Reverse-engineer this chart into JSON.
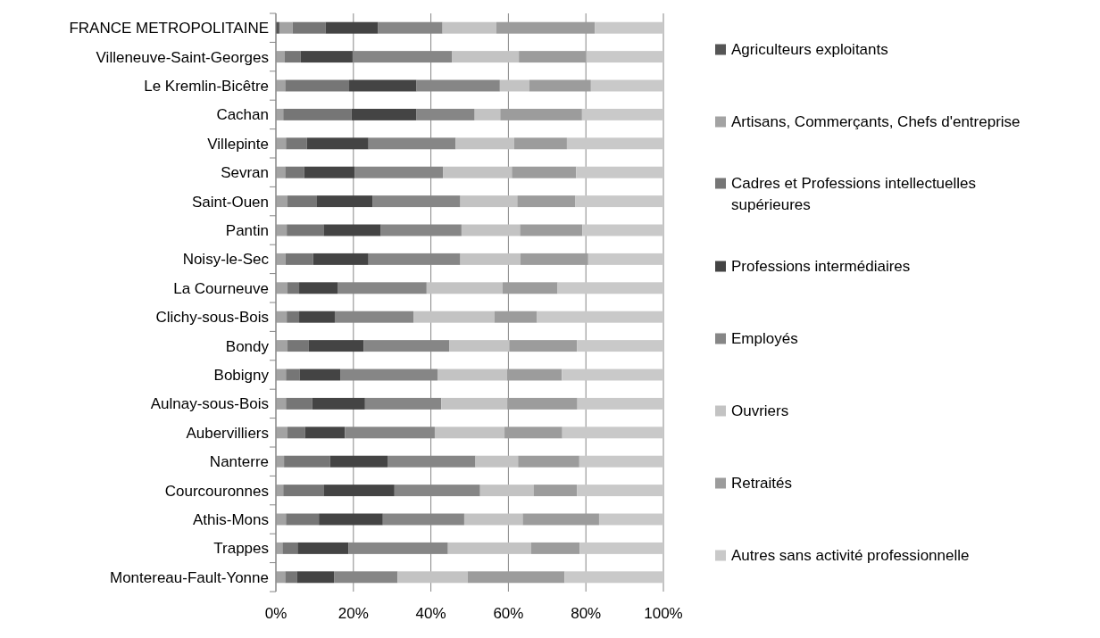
{
  "chart_data": {
    "type": "bar",
    "orientation": "horizontal",
    "stacked": true,
    "categories": [
      "FRANCE METROPOLITAINE",
      "Villeneuve-Saint-Georges",
      "Le Kremlin-Bicêtre",
      "Cachan",
      "Villepinte",
      "Sevran",
      "Saint-Ouen",
      "Pantin",
      "Noisy-le-Sec",
      "La Courneuve",
      "Clichy-sous-Bois",
      "Bondy",
      "Bobigny",
      "Aulnay-sous-Bois",
      "Aubervilliers",
      "Nanterre",
      "Courcouronnes",
      "Athis-Mons",
      "Trappes",
      "Montereau-Fault-Yonne"
    ],
    "series": [
      {
        "name": "Agriculteurs exploitants",
        "color": "#555555",
        "values": [
          0.9,
          0,
          0,
          0,
          0,
          0,
          0,
          0,
          0,
          0,
          0,
          0,
          0,
          0,
          0,
          0,
          0,
          0,
          0,
          0
        ]
      },
      {
        "name": "Artisans, Commerçants, Chefs d'entreprise",
        "color": "#a3a3a3",
        "values": [
          3.4,
          2.2,
          2.4,
          1.9,
          2.6,
          2.4,
          3.0,
          2.8,
          2.5,
          3.0,
          2.8,
          3.0,
          2.6,
          2.6,
          3.0,
          2.1,
          1.9,
          2.6,
          1.7,
          2.4
        ]
      },
      {
        "name": "Cadres et Professions intellectuelles supérieures",
        "color": "#767676",
        "values": [
          8.5,
          4.2,
          16.5,
          17.6,
          5.4,
          4.9,
          7.6,
          9.5,
          7.1,
          3.0,
          3.2,
          5.5,
          3.5,
          6.8,
          4.5,
          11.9,
          10.4,
          8.5,
          3.9,
          3.0
        ]
      },
      {
        "name": "Professions intermédiaires",
        "color": "#444444",
        "values": [
          13.6,
          13.4,
          17.4,
          16.8,
          15.9,
          13.1,
          14.3,
          14.8,
          14.3,
          9.9,
          9.2,
          14.2,
          10.5,
          13.6,
          10.3,
          14.8,
          18.3,
          16.5,
          13.1,
          9.6
        ]
      },
      {
        "name": "Employés",
        "color": "#868686",
        "values": [
          16.6,
          25.7,
          21.5,
          15.0,
          22.5,
          22.7,
          22.7,
          20.8,
          23.7,
          23.0,
          20.3,
          22.1,
          25.1,
          19.7,
          23.2,
          22.7,
          22.1,
          21.0,
          25.7,
          16.4
        ]
      },
      {
        "name": "Ouvriers",
        "color": "#c3c3c3",
        "values": [
          13.9,
          17.2,
          7.6,
          6.6,
          15.1,
          17.8,
          14.7,
          15.1,
          15.5,
          19.6,
          20.9,
          15.4,
          17.9,
          17.0,
          18.0,
          11.0,
          13.8,
          15.1,
          21.5,
          18.1
        ]
      },
      {
        "name": "Retraités",
        "color": "#9c9c9c",
        "values": [
          25.4,
          17.4,
          15.9,
          21.1,
          13.6,
          16.6,
          15.0,
          16.1,
          17.5,
          14.2,
          11.0,
          17.5,
          14.2,
          18.1,
          14.9,
          15.8,
          11.2,
          19.7,
          12.5,
          25.0
        ]
      },
      {
        "name": "Autres sans activité professionnelle",
        "color": "#c9c9c9",
        "values": [
          17.7,
          19.9,
          18.7,
          21.0,
          24.9,
          22.5,
          22.7,
          20.9,
          19.4,
          27.3,
          32.6,
          22.3,
          26.2,
          22.2,
          26.1,
          21.7,
          22.3,
          16.6,
          21.6,
          25.5
        ]
      }
    ],
    "xlim": [
      0,
      100
    ],
    "xticks": [
      {
        "value": 0,
        "label": "0%"
      },
      {
        "value": 20,
        "label": "20%"
      },
      {
        "value": 40,
        "label": "40%"
      },
      {
        "value": 60,
        "label": "60%"
      },
      {
        "value": 80,
        "label": "80%"
      },
      {
        "value": 100,
        "label": "100%"
      }
    ],
    "grid": "x",
    "legend": "right"
  }
}
